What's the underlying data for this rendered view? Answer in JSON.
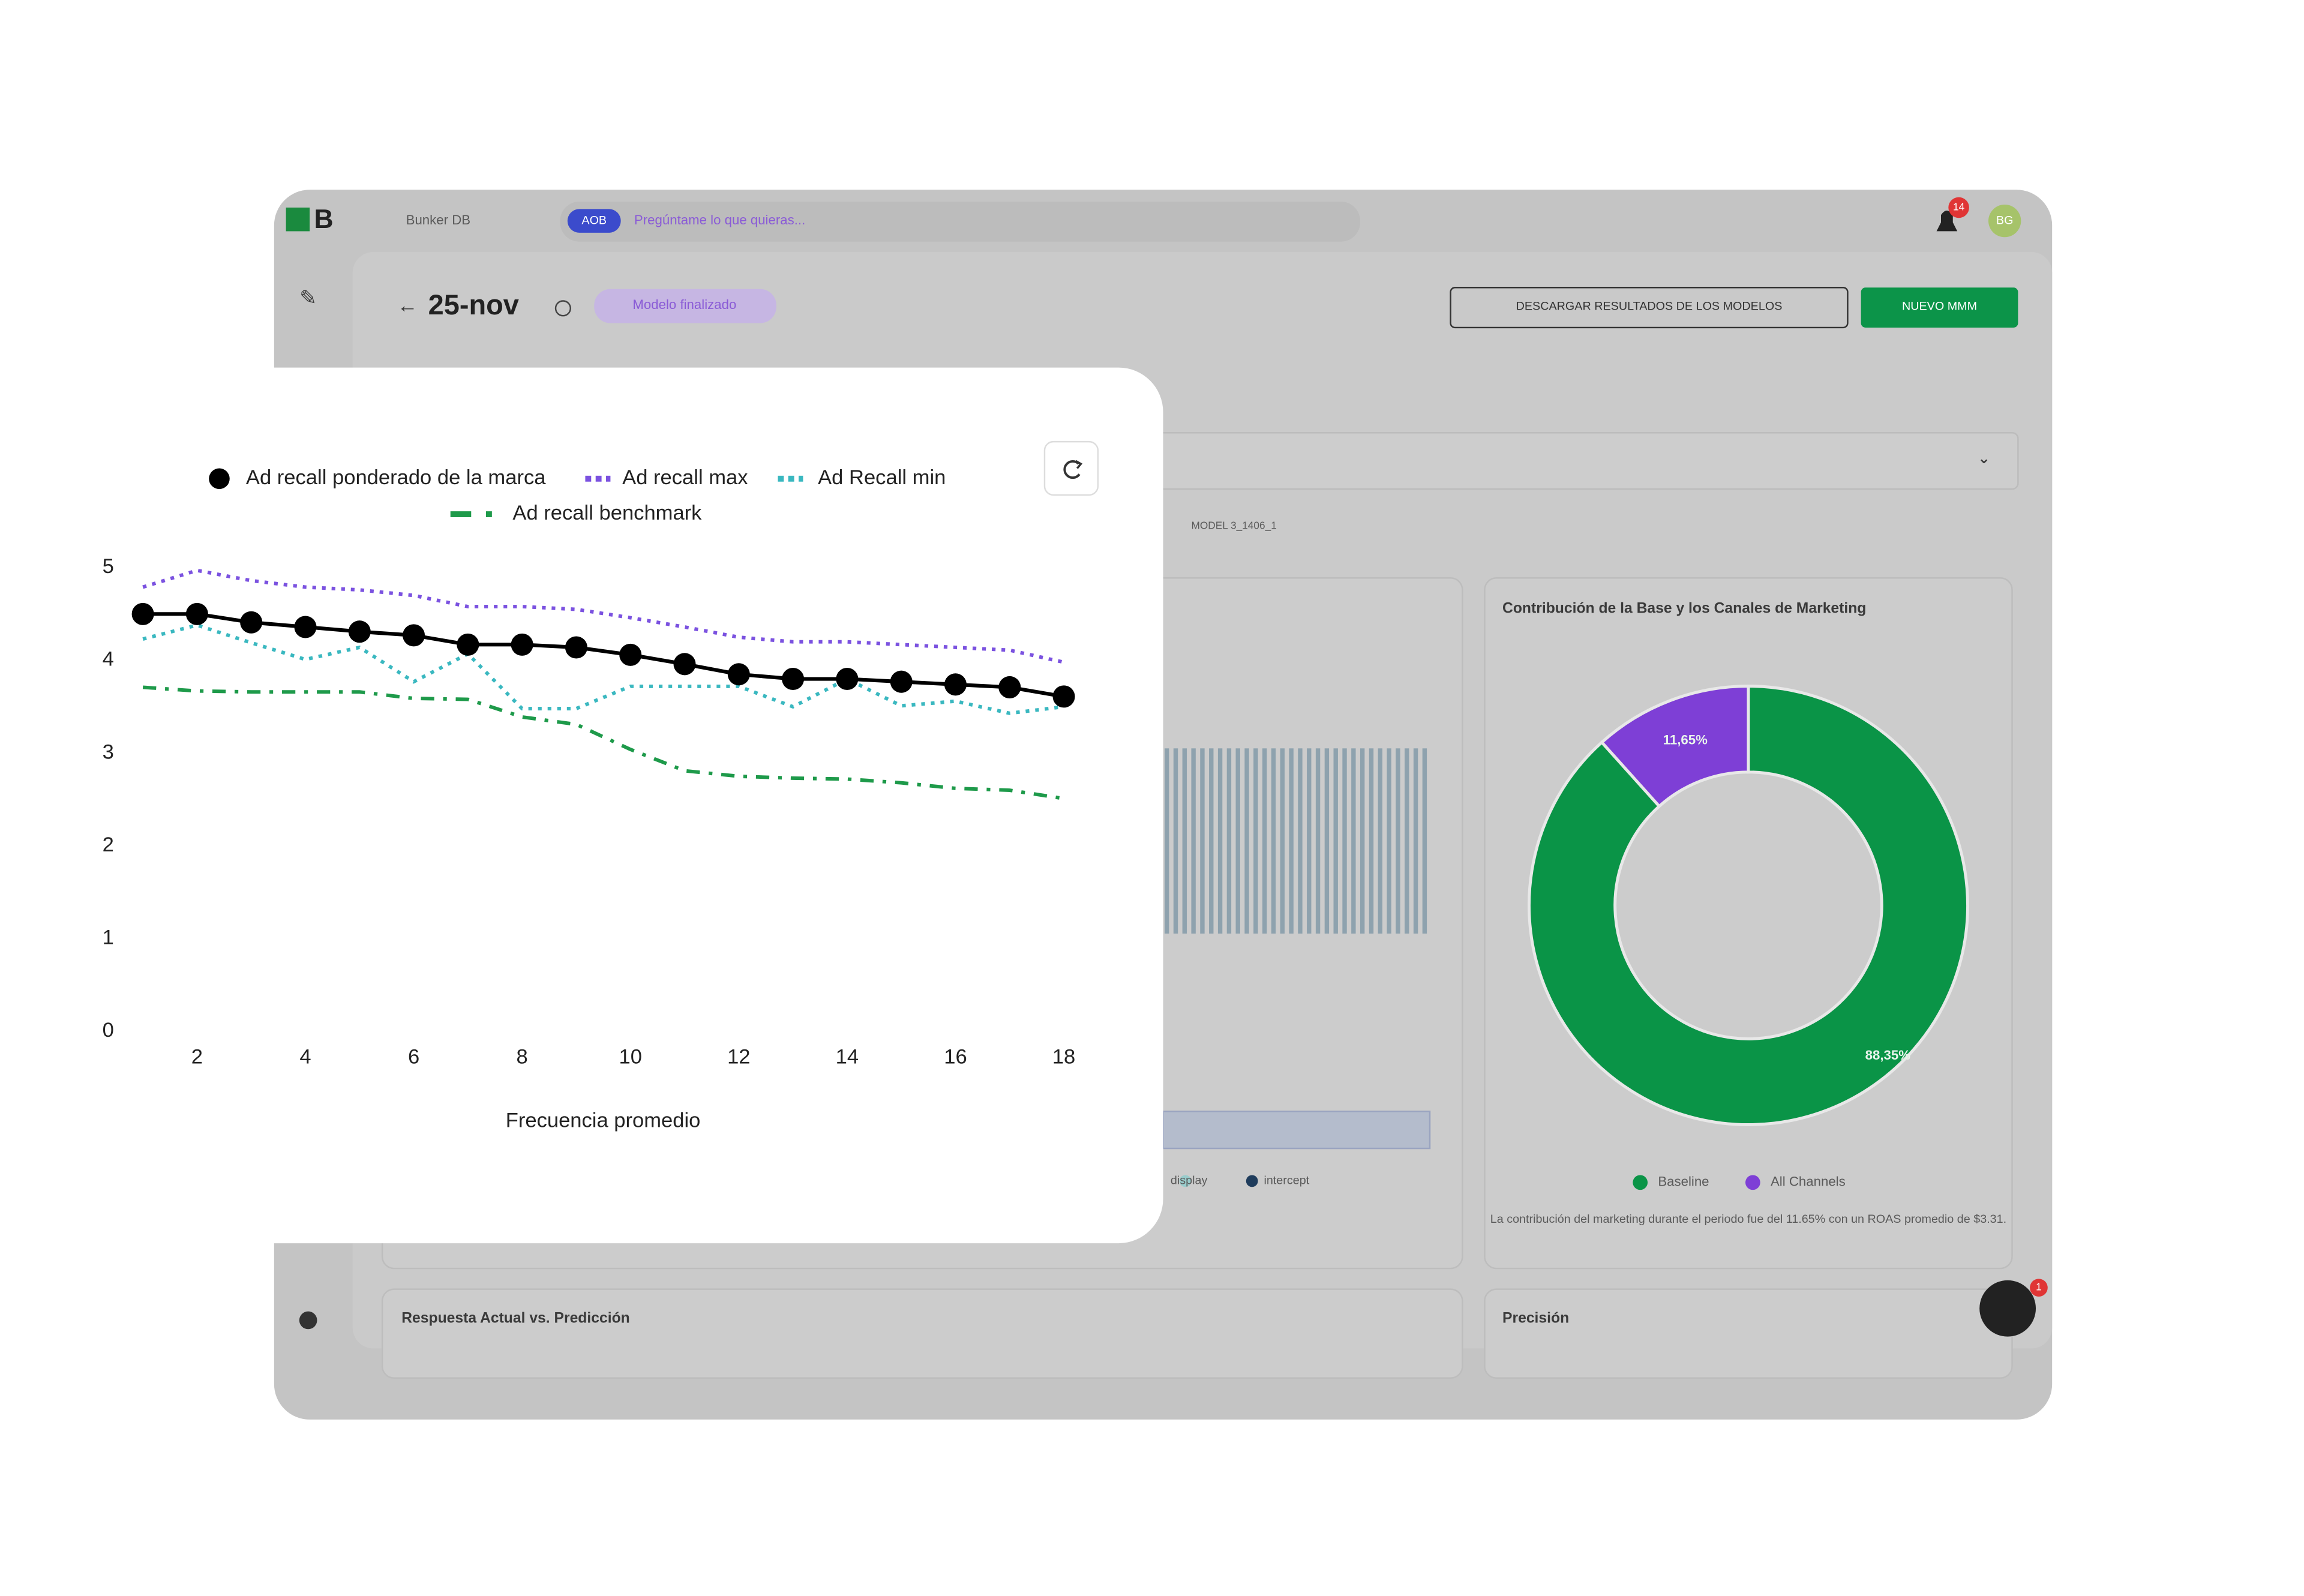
{
  "ui": {
    "logo": "B",
    "app_name": "Bunker DB",
    "ask_badge": "AOB",
    "search_placeholder": "Pregúntame lo que quieras...",
    "notifications": "14",
    "avatar": "BG",
    "page_title": "25-nov",
    "status": "Modelo finalizado",
    "download_button": "DESCARGAR RESULTADOS DE LOS MODELOS",
    "new_button": "NUEVO MMM",
    "model_tag": "MODEL 3_1406_1",
    "background_legend": [
      "display",
      "intercept"
    ],
    "bottom_left_title": "Respuesta Actual vs. Predicción",
    "bottom_right_title": "Precisión",
    "chat_badge": "1"
  },
  "chart_data": [
    {
      "type": "line",
      "xlabel": "Frecuencia promedio",
      "x": [
        1,
        2,
        3,
        4,
        5,
        6,
        7,
        8,
        9,
        10,
        11,
        12,
        13,
        14,
        15,
        16,
        17,
        18
      ],
      "series": [
        {
          "name": "Ad recall ponderado de la marca",
          "color": "#000000",
          "dash": "solid",
          "marker": "circle",
          "values": [
            4.5,
            4.5,
            4.41,
            4.36,
            4.31,
            4.27,
            4.17,
            4.17,
            4.14,
            4.06,
            3.96,
            3.85,
            3.8,
            3.8,
            3.77,
            3.74,
            3.71,
            3.61
          ]
        },
        {
          "name": "Ad recall max",
          "color": "#7b52e0",
          "dash": "dotted",
          "values": [
            4.79,
            4.97,
            4.86,
            4.79,
            4.76,
            4.7,
            4.58,
            4.58,
            4.55,
            4.46,
            4.36,
            4.25,
            4.2,
            4.2,
            4.17,
            4.14,
            4.11,
            3.98
          ]
        },
        {
          "name": "Ad Recall min",
          "color": "#3ab8c0",
          "dash": "dotted",
          "values": [
            4.23,
            4.38,
            4.19,
            4.01,
            4.14,
            3.77,
            4.07,
            3.48,
            3.48,
            3.72,
            3.72,
            3.72,
            3.5,
            3.8,
            3.51,
            3.56,
            3.43,
            3.5
          ]
        },
        {
          "name": "Ad recall benchmark",
          "color": "#1e9a4a",
          "dash": "dashdot",
          "values": [
            3.71,
            3.67,
            3.66,
            3.66,
            3.66,
            3.59,
            3.58,
            3.39,
            3.31,
            3.04,
            2.81,
            2.75,
            2.73,
            2.72,
            2.68,
            2.62,
            2.6,
            2.51
          ]
        }
      ],
      "xlim": [
        0.6,
        18.9
      ],
      "xticks": [
        2,
        4,
        6,
        8,
        10,
        12,
        14,
        16,
        18
      ],
      "ylim": [
        0,
        5.2
      ],
      "yticks": [
        0,
        1,
        2,
        3,
        4,
        5
      ],
      "grid": false
    },
    {
      "type": "pie",
      "title": "Contribución de la Base y los Canales de Marketing",
      "categories": [
        "Baseline",
        "All Channels"
      ],
      "values": [
        88.35,
        11.65
      ],
      "value_labels": [
        "88,35%",
        "11,65%"
      ],
      "colors": [
        "#0a9447",
        "#7e3fd6"
      ],
      "caption": "La contribución del marketing durante el periodo fue del 11.65% con un ROAS promedio de $3.31."
    }
  ]
}
